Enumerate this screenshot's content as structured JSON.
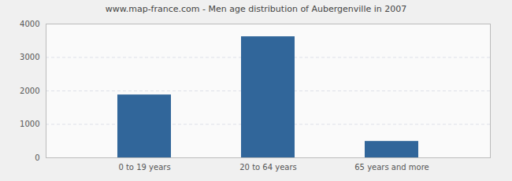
{
  "chart_data": {
    "type": "bar",
    "title": "www.map-france.com - Men age distribution of Aubergenville in 2007",
    "categories": [
      "0 to 19 years",
      "20 to 64 years",
      "65 years and more"
    ],
    "values": [
      1880,
      3620,
      490
    ],
    "color": "#31669a",
    "ylim": [
      0,
      4000
    ],
    "yticks": [
      0,
      1000,
      2000,
      3000,
      4000
    ],
    "grid": true
  }
}
